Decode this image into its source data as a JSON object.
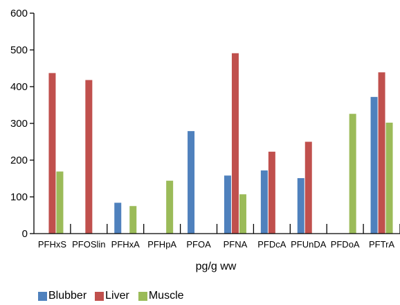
{
  "chart_data": {
    "type": "bar",
    "categories": [
      "PFHxS",
      "PFOSlin",
      "PFHxA",
      "PFHpA",
      "PFOA",
      "PFNA",
      "PFDcA",
      "PFUnDA",
      "PFDoA",
      "PFTrA"
    ],
    "series": [
      {
        "name": "Blubber",
        "color": "#4f81bd",
        "values": [
          null,
          null,
          84,
          null,
          279,
          158,
          172,
          151,
          null,
          372
        ]
      },
      {
        "name": "Liver",
        "color": "#c0504d",
        "values": [
          437,
          418,
          null,
          null,
          null,
          491,
          223,
          250,
          null,
          439
        ]
      },
      {
        "name": "Muscle",
        "color": "#9bbb59",
        "values": [
          169,
          null,
          75,
          144,
          null,
          107,
          null,
          null,
          326,
          302
        ]
      }
    ],
    "xlabel": "pg/g ww",
    "ylabel": "",
    "ylim": [
      0,
      600
    ],
    "yticks": [
      0,
      100,
      200,
      300,
      400,
      500,
      600
    ],
    "grid": false,
    "legend_position": "bottom-left"
  }
}
